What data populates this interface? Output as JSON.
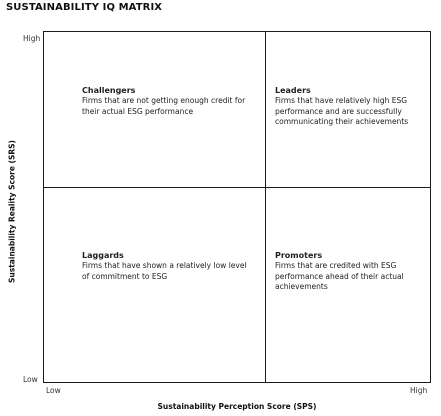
{
  "title": "SUSTAINABILITY IQ MATRIX",
  "axes": {
    "x_label": "Sustainability Perception Score (SPS)",
    "y_label": "Sustainability Reality Score (SRS)",
    "x_low": "Low",
    "x_high": "High",
    "y_low": "Low",
    "y_high": "High"
  },
  "quadrants": {
    "challengers": {
      "title": "Challengers",
      "description": "Firms that are not getting enough credit for their actual ESG performance"
    },
    "leaders": {
      "title": "Leaders",
      "description": "Firms that have relatively high ESG performance and are successfully communicating their achievements"
    },
    "laggards": {
      "title": "Laggards",
      "description": "Firms that have shown a relatively low level of commitment to ESG"
    },
    "promoters": {
      "title": "Promoters",
      "description": "Firms that are credited with ESG performance ahead of their actual achievements"
    }
  },
  "colors": {
    "lines": "#1a1a1a",
    "text": "#222222",
    "background": "#ffffff"
  }
}
